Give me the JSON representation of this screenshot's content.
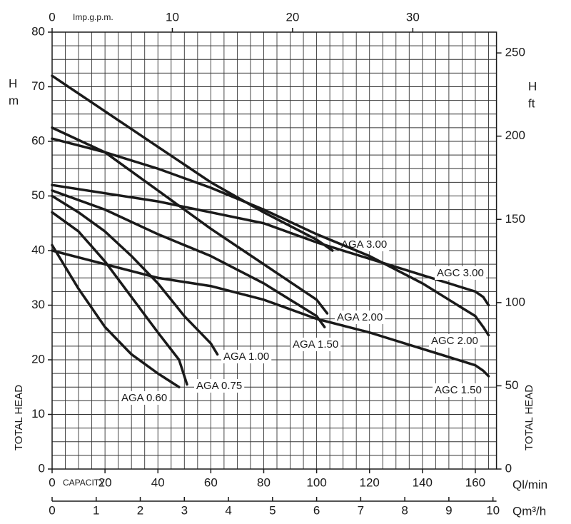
{
  "chart_data": {
    "type": "line",
    "xlim": [
      0,
      168
    ],
    "xticks": [
      0,
      20,
      40,
      60,
      80,
      100,
      120,
      140,
      160
    ],
    "xlabel": "Ql/min",
    "ylim": [
      0,
      80
    ],
    "yticks": [
      0,
      10,
      20,
      30,
      40,
      50,
      60,
      70,
      80
    ],
    "ylabel": [
      "H",
      "m"
    ],
    "y2lim": [
      0,
      262.5
    ],
    "y2ticks": [
      0,
      50,
      100,
      150,
      200,
      250
    ],
    "y2label": [
      "H",
      "ft"
    ],
    "x2lim": [
      0,
      36.96
    ],
    "x2ticks": [
      0,
      10,
      20,
      30
    ],
    "x2label": "Imp.g.p.m.",
    "x3lim": [
      0,
      10.08
    ],
    "x3ticks": [
      0,
      1,
      2,
      3,
      4,
      5,
      6,
      7,
      8,
      9,
      10
    ],
    "x3label": "Qm³/h",
    "side_label": "TOTAL HEAD",
    "capacity_label": "CAPACITY",
    "grid": true,
    "grid_xstep": 5,
    "grid_ystep": 2.5,
    "series": [
      {
        "name": "AGA 3.00",
        "color": "#1a1a1a",
        "x": [
          0,
          20,
          40,
          60,
          80,
          100,
          106
        ],
        "values": [
          72,
          65.5,
          59,
          52.5,
          47,
          42,
          40
        ]
      },
      {
        "name": "AGC 3.00",
        "color": "#1a1a1a",
        "x": [
          0,
          20,
          40,
          60,
          80,
          100,
          120,
          140,
          160,
          163,
          165
        ],
        "values": [
          52,
          50.5,
          49,
          47,
          45,
          41.5,
          38.5,
          35.5,
          32.5,
          31.5,
          30
        ]
      },
      {
        "name": "AGA 2.00",
        "color": "#1a1a1a",
        "x": [
          0,
          20,
          40,
          60,
          80,
          100,
          104
        ],
        "values": [
          62.5,
          58,
          51,
          44,
          37.5,
          31,
          28.5
        ]
      },
      {
        "name": "AGC 2.00",
        "color": "#1a1a1a",
        "x": [
          0,
          20,
          40,
          60,
          80,
          100,
          120,
          140,
          160,
          163,
          165
        ],
        "values": [
          60.5,
          58,
          55,
          51.5,
          47.5,
          43,
          39,
          34,
          28,
          26,
          24.5
        ]
      },
      {
        "name": "AGA 1.50",
        "color": "#1a1a1a",
        "x": [
          0,
          20,
          40,
          60,
          80,
          100,
          103
        ],
        "values": [
          51,
          47.5,
          43,
          39,
          34,
          28,
          26
        ]
      },
      {
        "name": "AGC 1.50",
        "color": "#1a1a1a",
        "x": [
          0,
          20,
          40,
          60,
          80,
          100,
          120,
          140,
          160,
          163,
          165
        ],
        "values": [
          40,
          37.5,
          35,
          33.5,
          31,
          27.5,
          25,
          22,
          19,
          18,
          17
        ]
      },
      {
        "name": "AGA 1.00",
        "color": "#1a1a1a",
        "x": [
          0,
          10,
          20,
          30,
          40,
          50,
          60,
          62.5
        ],
        "values": [
          50,
          47,
          43.5,
          39,
          34,
          28,
          23,
          21
        ]
      },
      {
        "name": "AGA 0.75",
        "color": "#1a1a1a",
        "x": [
          0,
          10,
          20,
          30,
          40,
          48,
          50,
          51
        ],
        "values": [
          47,
          43.5,
          38,
          31.5,
          25,
          20,
          17,
          15.5
        ]
      },
      {
        "name": "AGA 0.60",
        "color": "#1a1a1a",
        "x": [
          0,
          5,
          10,
          15,
          20,
          30,
          40,
          48
        ],
        "values": [
          41,
          37,
          33,
          29.5,
          26,
          21,
          17.5,
          15
        ]
      }
    ]
  }
}
